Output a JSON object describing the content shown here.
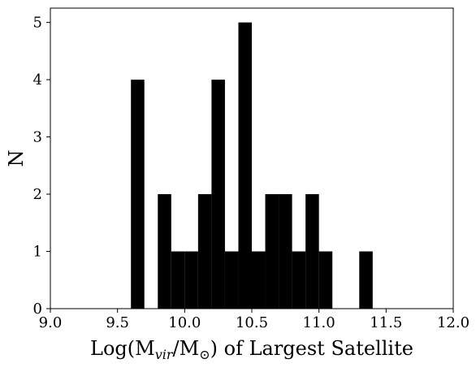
{
  "chart_data": {
    "type": "bar",
    "subtype": "histogram",
    "title": "",
    "xlabel": {
      "prefix": "Log(M",
      "sub1": "vir",
      "mid": "/M",
      "sub2": "⊙",
      "suffix": ") of Largest Satellite"
    },
    "ylabel": "N",
    "xlim": [
      9.0,
      12.0
    ],
    "ylim": [
      0,
      5.25
    ],
    "bin_width": 0.1,
    "bar_color": "#000000",
    "bins": [
      {
        "x0": 9.6,
        "x1": 9.7,
        "count": 4
      },
      {
        "x0": 9.8,
        "x1": 9.9,
        "count": 2
      },
      {
        "x0": 9.9,
        "x1": 10.0,
        "count": 1
      },
      {
        "x0": 10.0,
        "x1": 10.1,
        "count": 1
      },
      {
        "x0": 10.1,
        "x1": 10.2,
        "count": 2
      },
      {
        "x0": 10.2,
        "x1": 10.3,
        "count": 4
      },
      {
        "x0": 10.3,
        "x1": 10.4,
        "count": 1
      },
      {
        "x0": 10.4,
        "x1": 10.5,
        "count": 5
      },
      {
        "x0": 10.5,
        "x1": 10.6,
        "count": 1
      },
      {
        "x0": 10.6,
        "x1": 10.7,
        "count": 2
      },
      {
        "x0": 10.7,
        "x1": 10.8,
        "count": 2
      },
      {
        "x0": 10.8,
        "x1": 10.9,
        "count": 1
      },
      {
        "x0": 10.9,
        "x1": 11.0,
        "count": 2
      },
      {
        "x0": 11.0,
        "x1": 11.1,
        "count": 1
      },
      {
        "x0": 11.3,
        "x1": 11.4,
        "count": 1
      }
    ],
    "x_ticks": [
      {
        "value": 9.0,
        "label": "9.0"
      },
      {
        "value": 9.5,
        "label": "9.5"
      },
      {
        "value": 10.0,
        "label": "10.0"
      },
      {
        "value": 10.5,
        "label": "10.5"
      },
      {
        "value": 11.0,
        "label": "11.0"
      },
      {
        "value": 11.5,
        "label": "11.5"
      },
      {
        "value": 12.0,
        "label": "12.0"
      }
    ],
    "y_ticks": [
      {
        "value": 0,
        "label": "0"
      },
      {
        "value": 1,
        "label": "1"
      },
      {
        "value": 2,
        "label": "2"
      },
      {
        "value": 3,
        "label": "3"
      },
      {
        "value": 4,
        "label": "4"
      },
      {
        "value": 5,
        "label": "5"
      }
    ],
    "grid": false,
    "legend": "none"
  }
}
